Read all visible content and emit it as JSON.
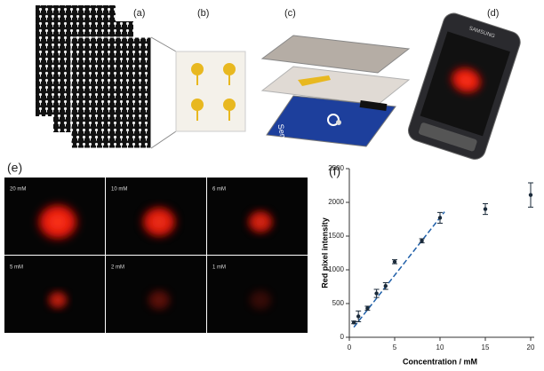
{
  "panels": {
    "a": "(a)",
    "b": "(b)",
    "c": "(c)",
    "d": "(d)",
    "e": "(e)",
    "f": "(f)"
  },
  "sensor_text": "Sensor",
  "phone_brand": "SAMSUNG",
  "images": [
    "20 mM",
    "10 mM",
    "6 mM",
    "5 mM",
    "2 mM",
    "1 mM"
  ],
  "chart_data": {
    "type": "scatter",
    "x_label": "Concentration / mM",
    "y_label": "Red pixel intensity",
    "x": [
      0.5,
      1,
      2,
      3,
      4,
      5,
      8,
      10,
      15,
      20
    ],
    "values": [
      220,
      310,
      430,
      650,
      760,
      1120,
      1430,
      1770,
      1900,
      2110
    ],
    "errors": [
      20,
      80,
      30,
      60,
      50,
      30,
      30,
      80,
      80,
      180
    ],
    "color": "#1a2a3a",
    "fit_line": {
      "x": [
        0.5,
        10.5
      ],
      "y": [
        150,
        1860
      ],
      "color": "#1f5fa8"
    },
    "xlim": [
      0,
      20
    ],
    "xticks": [
      0,
      5,
      10,
      15,
      20
    ],
    "ylim": [
      0,
      2500
    ],
    "yticks": [
      0,
      500,
      1000,
      1500,
      2000,
      2500
    ]
  }
}
